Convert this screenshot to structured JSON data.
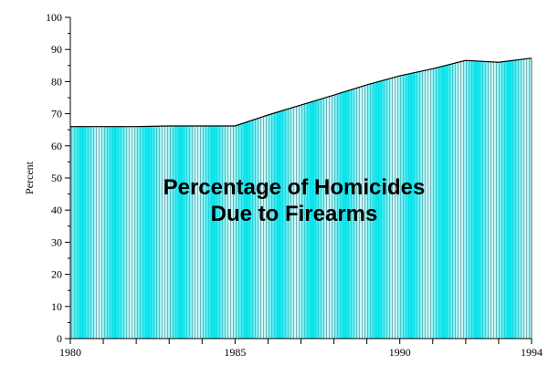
{
  "chart_data": {
    "type": "area",
    "title": [
      "Percentage of Homicides",
      "Due to Firearms"
    ],
    "xlabel": "",
    "ylabel": "Percent",
    "x": [
      1980,
      1981,
      1982,
      1983,
      1984,
      1985,
      1986,
      1987,
      1988,
      1989,
      1990,
      1991,
      1992,
      1993,
      1994
    ],
    "values": [
      66,
      66,
      66,
      66.2,
      66.2,
      66.2,
      69.6,
      72.7,
      75.8,
      79,
      81.8,
      84,
      86.6,
      86,
      87.3
    ],
    "xlim": [
      1980,
      1994
    ],
    "ylim": [
      0,
      100
    ],
    "xticks": [
      1980,
      1985,
      1990,
      1994
    ],
    "yticks": [
      0,
      10,
      20,
      30,
      40,
      50,
      60,
      70,
      80,
      90,
      100
    ],
    "grid": false,
    "colors": {
      "fill": "#00e5ee",
      "stripe": "#a0a0a0",
      "line": "#000000"
    }
  }
}
